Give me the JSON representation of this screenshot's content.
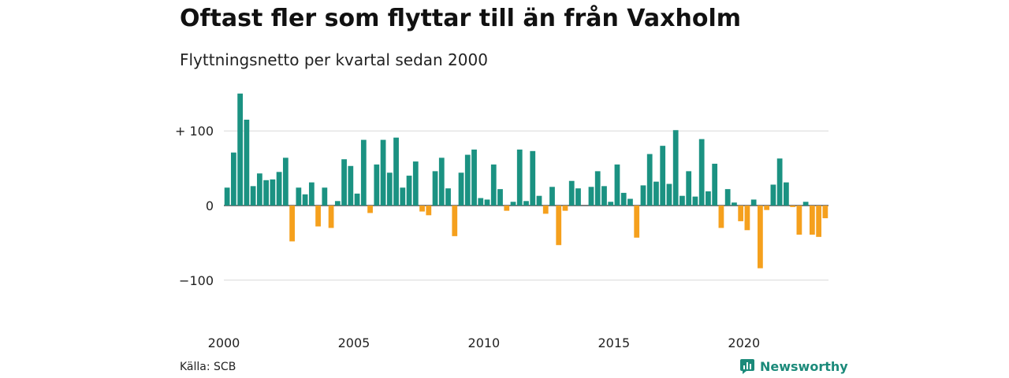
{
  "title": "Oftast fler som flyttar till än från Vaxholm",
  "subtitle": "Flyttningsnetto per kvartal sedan 2000",
  "source": "Källa: SCB",
  "brand": "Newsworthy",
  "colors": {
    "positive": "#1b9282",
    "negative": "#f5a01d",
    "grid": "#d9d9d9",
    "brand": "#1b8a7a"
  },
  "chart_data": {
    "type": "bar",
    "title": "Oftast fler som flyttar till än från Vaxholm",
    "subtitle": "Flyttningsnetto per kvartal sedan 2000",
    "xlabel": "",
    "ylabel": "",
    "ylim": [
      -145,
      160
    ],
    "yticks": [
      {
        "value": 100,
        "label": "+ 100"
      },
      {
        "value": 0,
        "label": "0"
      },
      {
        "value": -100,
        "label": "−100"
      }
    ],
    "xticks": [
      {
        "index": 0,
        "label": "2000"
      },
      {
        "index": 20,
        "label": "2005"
      },
      {
        "index": 40,
        "label": "2010"
      },
      {
        "index": 60,
        "label": "2015"
      },
      {
        "index": 80,
        "label": "2020"
      }
    ],
    "start": "2000 Q1",
    "values": [
      24,
      71,
      150,
      115,
      26,
      43,
      34,
      35,
      45,
      64,
      -48,
      24,
      15,
      31,
      -28,
      24,
      -30,
      6,
      62,
      53,
      16,
      88,
      -10,
      55,
      88,
      44,
      91,
      24,
      40,
      59,
      -8,
      -13,
      46,
      64,
      23,
      -41,
      44,
      68,
      75,
      10,
      8,
      55,
      22,
      -7,
      5,
      75,
      6,
      73,
      13,
      -11,
      25,
      -53,
      -7,
      33,
      23,
      0,
      25,
      46,
      26,
      5,
      55,
      17,
      9,
      -43,
      27,
      69,
      32,
      80,
      29,
      101,
      13,
      46,
      12,
      89,
      19,
      56,
      -30,
      22,
      4,
      -21,
      -33,
      8,
      -84,
      -6,
      28,
      63,
      31,
      -2,
      -39,
      5,
      -39,
      -42,
      -17
    ]
  }
}
